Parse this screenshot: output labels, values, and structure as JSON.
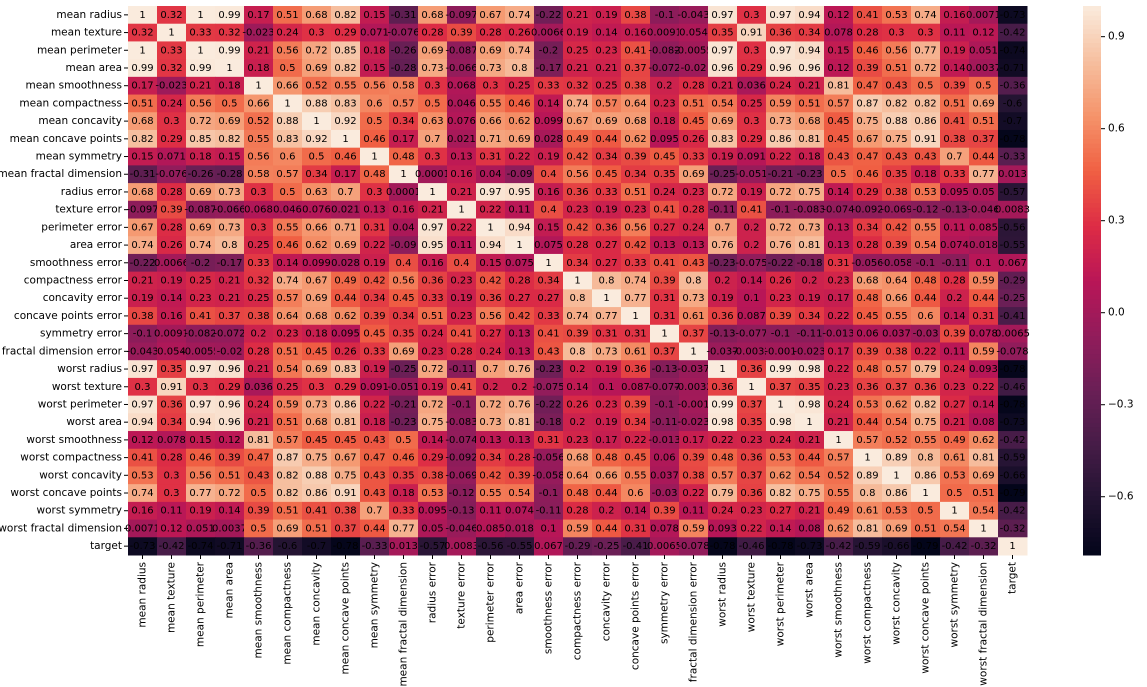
{
  "chart_data": {
    "type": "heatmap",
    "rows": [
      "mean radius",
      "mean texture",
      "mean perimeter",
      "mean area",
      "mean smoothness",
      "mean compactness",
      "mean concavity",
      "mean concave points",
      "mean symmetry",
      "mean fractal dimension",
      "radius error",
      "texture error",
      "perimeter error",
      "area error",
      "smoothness error",
      "compactness error",
      "concavity error",
      "concave points error",
      "symmetry error",
      "fractal dimension error",
      "worst radius",
      "worst texture",
      "worst perimeter",
      "worst area",
      "worst smoothness",
      "worst compactness",
      "worst concavity",
      "worst concave points",
      "worst symmetry",
      "worst fractal dimension",
      "target"
    ],
    "columns": [
      "mean radius",
      "mean texture",
      "mean perimeter",
      "mean area",
      "mean smoothness",
      "mean compactness",
      "mean concavity",
      "mean concave points",
      "mean symmetry",
      "mean fractal dimension",
      "radius error",
      "texture error",
      "perimeter error",
      "area error",
      "smoothness error",
      "compactness error",
      "concavity error",
      "concave points error",
      "symmetry error",
      "fractal dimension error",
      "worst radius",
      "worst texture",
      "worst perimeter",
      "worst area",
      "worst smoothness",
      "worst compactness",
      "worst concavity",
      "worst concave points",
      "worst symmetry",
      "worst fractal dimension",
      "target"
    ],
    "values": [
      [
        1,
        0.32,
        1,
        0.99,
        0.17,
        0.51,
        0.68,
        0.82,
        0.15,
        -0.31,
        0.68,
        -0.097,
        0.67,
        0.74,
        -0.22,
        0.21,
        0.19,
        0.38,
        -0.1,
        -0.043,
        0.97,
        0.3,
        0.97,
        0.94,
        0.12,
        0.41,
        0.53,
        0.74,
        0.16,
        0.0071,
        -0.73
      ],
      [
        0.32,
        1,
        0.33,
        0.32,
        -0.023,
        0.24,
        0.3,
        0.29,
        0.071,
        -0.076,
        0.28,
        0.39,
        0.28,
        0.26,
        0.0066,
        0.19,
        0.14,
        0.16,
        0.0091,
        0.054,
        0.35,
        0.91,
        0.36,
        0.34,
        0.078,
        0.28,
        0.3,
        0.3,
        0.11,
        0.12,
        -0.42
      ],
      [
        1,
        0.33,
        1,
        0.99,
        0.21,
        0.56,
        0.72,
        0.85,
        0.18,
        -0.26,
        0.69,
        -0.087,
        0.69,
        0.74,
        -0.2,
        0.25,
        0.23,
        0.41,
        -0.082,
        -0.0055,
        0.97,
        0.3,
        0.97,
        0.94,
        0.15,
        0.46,
        0.56,
        0.77,
        0.19,
        0.051,
        -0.74
      ],
      [
        0.99,
        0.32,
        0.99,
        1,
        0.18,
        0.5,
        0.69,
        0.82,
        0.15,
        -0.28,
        0.73,
        -0.066,
        0.73,
        0.8,
        -0.17,
        0.21,
        0.21,
        0.37,
        -0.072,
        -0.02,
        0.96,
        0.29,
        0.96,
        0.96,
        0.12,
        0.39,
        0.51,
        0.72,
        0.14,
        0.0037,
        -0.71
      ],
      [
        0.17,
        -0.023,
        0.21,
        0.18,
        1,
        0.66,
        0.52,
        0.55,
        0.56,
        0.58,
        0.3,
        0.068,
        0.3,
        0.25,
        0.33,
        0.32,
        0.25,
        0.38,
        0.2,
        0.28,
        0.21,
        0.036,
        0.24,
        0.21,
        0.81,
        0.47,
        0.43,
        0.5,
        0.39,
        0.5,
        -0.36
      ],
      [
        0.51,
        0.24,
        0.56,
        0.5,
        0.66,
        1,
        0.88,
        0.83,
        0.6,
        0.57,
        0.5,
        0.046,
        0.55,
        0.46,
        0.14,
        0.74,
        0.57,
        0.64,
        0.23,
        0.51,
        0.54,
        0.25,
        0.59,
        0.51,
        0.57,
        0.87,
        0.82,
        0.82,
        0.51,
        0.69,
        -0.6
      ],
      [
        0.68,
        0.3,
        0.72,
        0.69,
        0.52,
        0.88,
        1,
        0.92,
        0.5,
        0.34,
        0.63,
        0.076,
        0.66,
        0.62,
        0.099,
        0.67,
        0.69,
        0.68,
        0.18,
        0.45,
        0.69,
        0.3,
        0.73,
        0.68,
        0.45,
        0.75,
        0.88,
        0.86,
        0.41,
        0.51,
        -0.7
      ],
      [
        0.82,
        0.29,
        0.85,
        0.82,
        0.55,
        0.83,
        0.92,
        1,
        0.46,
        0.17,
        0.7,
        0.021,
        0.71,
        0.69,
        0.028,
        0.49,
        0.44,
        0.62,
        0.095,
        0.26,
        0.83,
        0.29,
        0.86,
        0.81,
        0.45,
        0.67,
        0.75,
        0.91,
        0.38,
        0.37,
        -0.78
      ],
      [
        0.15,
        0.071,
        0.18,
        0.15,
        0.56,
        0.6,
        0.5,
        0.46,
        1,
        0.48,
        0.3,
        0.13,
        0.31,
        0.22,
        0.19,
        0.42,
        0.34,
        0.39,
        0.45,
        0.33,
        0.19,
        0.091,
        0.22,
        0.18,
        0.43,
        0.47,
        0.43,
        0.43,
        0.7,
        0.44,
        -0.33
      ],
      [
        -0.31,
        -0.076,
        -0.26,
        -0.28,
        0.58,
        0.57,
        0.34,
        0.17,
        0.48,
        1,
        0.0001,
        0.16,
        0.04,
        -0.09,
        0.4,
        0.56,
        0.45,
        0.34,
        0.35,
        0.69,
        -0.25,
        -0.051,
        -0.21,
        -0.23,
        0.5,
        0.46,
        0.35,
        0.18,
        0.33,
        0.77,
        0.013
      ],
      [
        0.68,
        0.28,
        0.69,
        0.73,
        0.3,
        0.5,
        0.63,
        0.7,
        0.3,
        0.0001,
        1,
        0.21,
        0.97,
        0.95,
        0.16,
        0.36,
        0.33,
        0.51,
        0.24,
        0.23,
        0.72,
        0.19,
        0.72,
        0.75,
        0.14,
        0.29,
        0.38,
        0.53,
        0.095,
        0.05,
        -0.57
      ],
      [
        -0.097,
        0.39,
        -0.087,
        -0.066,
        0.068,
        0.046,
        0.076,
        0.021,
        0.13,
        0.16,
        0.21,
        1,
        0.22,
        0.11,
        0.4,
        0.23,
        0.19,
        0.23,
        0.41,
        0.28,
        -0.11,
        0.41,
        -0.1,
        -0.083,
        -0.074,
        -0.092,
        -0.069,
        -0.12,
        -0.13,
        -0.046,
        0.0083
      ],
      [
        0.67,
        0.28,
        0.69,
        0.73,
        0.3,
        0.55,
        0.66,
        0.71,
        0.31,
        0.04,
        0.97,
        0.22,
        1,
        0.94,
        0.15,
        0.42,
        0.36,
        0.56,
        0.27,
        0.24,
        0.7,
        0.2,
        0.72,
        0.73,
        0.13,
        0.34,
        0.42,
        0.55,
        0.11,
        0.085,
        -0.56
      ],
      [
        0.74,
        0.26,
        0.74,
        0.8,
        0.25,
        0.46,
        0.62,
        0.69,
        0.22,
        -0.09,
        0.95,
        0.11,
        0.94,
        1,
        0.075,
        0.28,
        0.27,
        0.42,
        0.13,
        0.13,
        0.76,
        0.2,
        0.76,
        0.81,
        0.13,
        0.28,
        0.39,
        0.54,
        0.074,
        0.018,
        -0.55
      ],
      [
        -0.22,
        0.0066,
        -0.2,
        -0.17,
        0.33,
        0.14,
        0.099,
        0.028,
        0.19,
        0.4,
        0.16,
        0.4,
        0.15,
        0.075,
        1,
        0.34,
        0.27,
        0.33,
        0.41,
        0.43,
        -0.23,
        -0.075,
        -0.22,
        -0.18,
        0.31,
        -0.056,
        -0.058,
        -0.1,
        -0.11,
        0.1,
        0.067
      ],
      [
        0.21,
        0.19,
        0.25,
        0.21,
        0.32,
        0.74,
        0.67,
        0.49,
        0.42,
        0.56,
        0.36,
        0.23,
        0.42,
        0.28,
        0.34,
        1,
        0.8,
        0.74,
        0.39,
        0.8,
        0.2,
        0.14,
        0.26,
        0.2,
        0.23,
        0.68,
        0.64,
        0.48,
        0.28,
        0.59,
        -0.29
      ],
      [
        0.19,
        0.14,
        0.23,
        0.21,
        0.25,
        0.57,
        0.69,
        0.44,
        0.34,
        0.45,
        0.33,
        0.19,
        0.36,
        0.27,
        0.27,
        0.8,
        1,
        0.77,
        0.31,
        0.73,
        0.19,
        0.1,
        0.23,
        0.19,
        0.17,
        0.48,
        0.66,
        0.44,
        0.2,
        0.44,
        -0.25
      ],
      [
        0.38,
        0.16,
        0.41,
        0.37,
        0.38,
        0.64,
        0.68,
        0.62,
        0.39,
        0.34,
        0.51,
        0.23,
        0.56,
        0.42,
        0.33,
        0.74,
        0.77,
        1,
        0.31,
        0.61,
        0.36,
        0.087,
        0.39,
        0.34,
        0.22,
        0.45,
        0.55,
        0.6,
        0.14,
        0.31,
        -0.41
      ],
      [
        -0.1,
        0.0091,
        -0.082,
        -0.072,
        0.2,
        0.23,
        0.18,
        0.095,
        0.45,
        0.35,
        0.24,
        0.41,
        0.27,
        0.13,
        0.41,
        0.39,
        0.31,
        0.31,
        1,
        0.37,
        -0.13,
        -0.077,
        -0.1,
        -0.11,
        -0.013,
        0.06,
        0.037,
        -0.03,
        0.39,
        0.078,
        0.0065
      ],
      [
        -0.043,
        0.054,
        -0.0055,
        -0.02,
        0.28,
        0.51,
        0.45,
        0.26,
        0.33,
        0.69,
        0.23,
        0.28,
        0.24,
        0.13,
        0.43,
        0.8,
        0.73,
        0.61,
        0.37,
        1,
        -0.037,
        -0.0032,
        -0.001,
        -0.023,
        0.17,
        0.39,
        0.38,
        0.22,
        0.11,
        0.59,
        -0.078
      ],
      [
        0.97,
        0.35,
        0.97,
        0.96,
        0.21,
        0.54,
        0.69,
        0.83,
        0.19,
        -0.25,
        0.72,
        -0.11,
        0.7,
        0.76,
        -0.23,
        0.2,
        0.19,
        0.36,
        -0.13,
        -0.037,
        1,
        0.36,
        0.99,
        0.98,
        0.22,
        0.48,
        0.57,
        0.79,
        0.24,
        0.093,
        -0.78
      ],
      [
        0.3,
        0.91,
        0.3,
        0.29,
        0.036,
        0.25,
        0.3,
        0.29,
        0.091,
        -0.051,
        0.19,
        0.41,
        0.2,
        0.2,
        -0.075,
        0.14,
        0.1,
        0.087,
        -0.077,
        -0.0032,
        0.36,
        1,
        0.37,
        0.35,
        0.23,
        0.36,
        0.37,
        0.36,
        0.23,
        0.22,
        -0.46
      ],
      [
        0.97,
        0.36,
        0.97,
        0.96,
        0.24,
        0.59,
        0.73,
        0.86,
        0.22,
        -0.21,
        0.72,
        -0.1,
        0.72,
        0.76,
        -0.22,
        0.26,
        0.23,
        0.39,
        -0.1,
        -0.001,
        0.99,
        0.37,
        1,
        0.98,
        0.24,
        0.53,
        0.62,
        0.82,
        0.27,
        0.14,
        -0.78
      ],
      [
        0.94,
        0.34,
        0.94,
        0.96,
        0.21,
        0.51,
        0.68,
        0.81,
        0.18,
        -0.23,
        0.75,
        -0.083,
        0.73,
        0.81,
        -0.18,
        0.2,
        0.19,
        0.34,
        -0.11,
        -0.023,
        0.98,
        0.35,
        0.98,
        1,
        0.21,
        0.44,
        0.54,
        0.75,
        0.21,
        0.08,
        -0.73
      ],
      [
        0.12,
        0.078,
        0.15,
        0.12,
        0.81,
        0.57,
        0.45,
        0.45,
        0.43,
        0.5,
        0.14,
        -0.074,
        0.13,
        0.13,
        0.31,
        0.23,
        0.17,
        0.22,
        -0.013,
        0.17,
        0.22,
        0.23,
        0.24,
        0.21,
        1,
        0.57,
        0.52,
        0.55,
        0.49,
        0.62,
        -0.42
      ],
      [
        0.41,
        0.28,
        0.46,
        0.39,
        0.47,
        0.87,
        0.75,
        0.67,
        0.47,
        0.46,
        0.29,
        -0.092,
        0.34,
        0.28,
        -0.056,
        0.68,
        0.48,
        0.45,
        0.06,
        0.39,
        0.48,
        0.36,
        0.53,
        0.44,
        0.57,
        1,
        0.89,
        0.8,
        0.61,
        0.81,
        -0.59
      ],
      [
        0.53,
        0.3,
        0.56,
        0.51,
        0.43,
        0.82,
        0.88,
        0.75,
        0.43,
        0.35,
        0.38,
        -0.069,
        0.42,
        0.39,
        -0.058,
        0.64,
        0.66,
        0.55,
        0.037,
        0.38,
        0.57,
        0.37,
        0.62,
        0.54,
        0.52,
        0.89,
        1,
        0.86,
        0.53,
        0.69,
        -0.66
      ],
      [
        0.74,
        0.3,
        0.77,
        0.72,
        0.5,
        0.82,
        0.86,
        0.91,
        0.43,
        0.18,
        0.53,
        -0.12,
        0.55,
        0.54,
        -0.1,
        0.48,
        0.44,
        0.6,
        -0.03,
        0.22,
        0.79,
        0.36,
        0.82,
        0.75,
        0.55,
        0.8,
        0.86,
        1,
        0.5,
        0.51,
        -0.79
      ],
      [
        0.16,
        0.11,
        0.19,
        0.14,
        0.39,
        0.51,
        0.41,
        0.38,
        0.7,
        0.33,
        0.095,
        -0.13,
        0.11,
        0.074,
        -0.11,
        0.28,
        0.2,
        0.14,
        0.39,
        0.11,
        0.24,
        0.23,
        0.27,
        0.21,
        0.49,
        0.61,
        0.53,
        0.5,
        1,
        0.54,
        -0.42
      ],
      [
        0.0071,
        0.12,
        0.051,
        0.0037,
        0.5,
        0.69,
        0.51,
        0.37,
        0.44,
        0.77,
        0.05,
        -0.046,
        0.085,
        0.018,
        0.1,
        0.59,
        0.44,
        0.31,
        0.078,
        0.59,
        0.093,
        0.22,
        0.14,
        0.08,
        0.62,
        0.81,
        0.69,
        0.51,
        0.54,
        1,
        -0.32
      ],
      [
        -0.73,
        -0.42,
        -0.74,
        -0.71,
        -0.36,
        -0.6,
        -0.7,
        -0.78,
        -0.33,
        0.013,
        -0.57,
        0.0083,
        -0.56,
        -0.55,
        0.067,
        -0.29,
        -0.25,
        -0.41,
        0.0065,
        -0.078,
        -0.78,
        -0.46,
        -0.78,
        -0.73,
        -0.42,
        -0.59,
        -0.66,
        -0.79,
        -0.42,
        -0.32,
        1
      ]
    ],
    "clim": [
      -0.79,
      1
    ],
    "cticks": [
      0.9,
      0.6,
      0.3,
      {
        "value": 0,
        "label": "0.0"
      },
      {
        "value": -0.3,
        "label": "−0.3"
      },
      {
        "value": -0.6,
        "label": "−0.6"
      }
    ],
    "colormap": [
      "#03051a",
      "#221331",
      "#451c47",
      "#6a1f56",
      "#921c5b",
      "#b91657",
      "#dd2c45",
      "#f06043",
      "#f5936a",
      "#f6bf9f",
      "#faebdd"
    ],
    "annotate": true
  }
}
